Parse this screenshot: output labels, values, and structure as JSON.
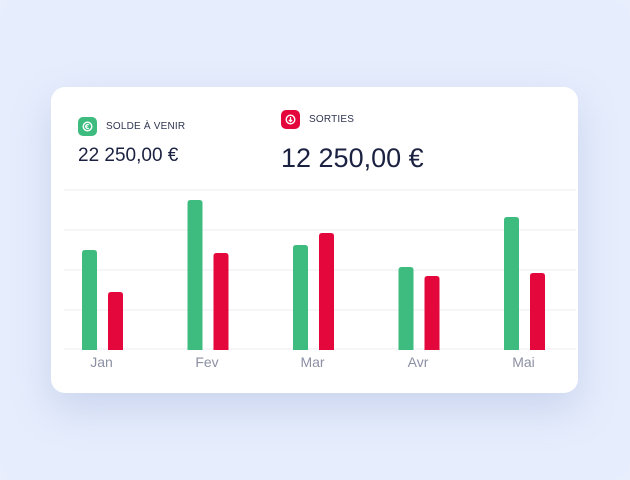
{
  "kpis": [
    {
      "label": "SOLDE À VENIR",
      "value": "22 250,00 €",
      "icon": "euro-circle-icon",
      "color": "#3ebb7e"
    },
    {
      "label": "SORTIES",
      "value": "12 250,00 €",
      "icon": "arrow-down-circle-icon",
      "color": "#e3073c"
    }
  ],
  "chart_data": {
    "type": "bar",
    "categories": [
      "Jan",
      "Fev",
      "Mar",
      "Avr",
      "Mai"
    ],
    "series": [
      {
        "color": "#3ebb7e",
        "values": [
          100,
          150,
          105,
          83,
          133
        ]
      },
      {
        "color": "#e3073c",
        "values": [
          58,
          97,
          117,
          74,
          77
        ]
      }
    ],
    "ylim": [
      0,
      160
    ],
    "grid": true,
    "legend": "none"
  }
}
